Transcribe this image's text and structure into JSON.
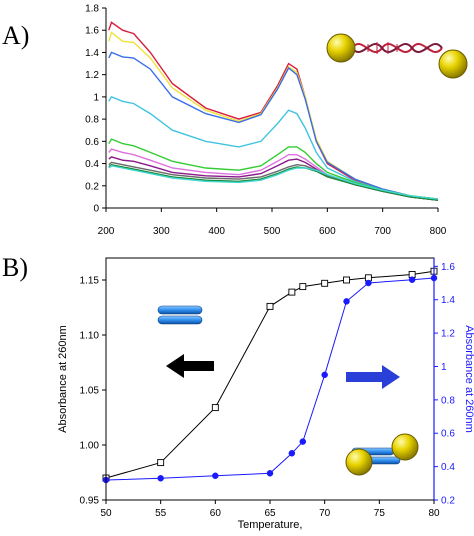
{
  "panels": {
    "a_label": "A)",
    "b_label": "B)"
  },
  "chart_data": [
    {
      "type": "line",
      "title": "",
      "xlabel": "",
      "ylabel": "",
      "xlim": [
        200,
        800
      ],
      "ylim": [
        0,
        1.8
      ],
      "x_ticks": [
        "200",
        "300",
        "400",
        "500",
        "600",
        "700",
        "800"
      ],
      "y_ticks": [
        "0",
        "0.2",
        "0.4",
        "0.6",
        "0.8",
        "1",
        "1.2",
        "1.4",
        "1.6",
        "1.8"
      ],
      "grid": false,
      "legend": "none",
      "series": [
        {
          "color": "#d81b3c",
          "points": [
            [
              205,
              1.6
            ],
            [
              210,
              1.67
            ],
            [
              230,
              1.6
            ],
            [
              250,
              1.57
            ],
            [
              280,
              1.4
            ],
            [
              320,
              1.12
            ],
            [
              380,
              0.9
            ],
            [
              440,
              0.8
            ],
            [
              480,
              0.86
            ],
            [
              510,
              1.1
            ],
            [
              530,
              1.3
            ],
            [
              545,
              1.25
            ],
            [
              560,
              1.0
            ],
            [
              580,
              0.6
            ],
            [
              600,
              0.4
            ],
            [
              650,
              0.25
            ],
            [
              700,
              0.16
            ],
            [
              750,
              0.1
            ],
            [
              800,
              0.07
            ]
          ]
        },
        {
          "color": "#f0e23a",
          "points": [
            [
              205,
              1.5
            ],
            [
              210,
              1.58
            ],
            [
              230,
              1.5
            ],
            [
              250,
              1.49
            ],
            [
              280,
              1.35
            ],
            [
              320,
              1.08
            ],
            [
              380,
              0.88
            ],
            [
              440,
              0.78
            ],
            [
              480,
              0.85
            ],
            [
              510,
              1.08
            ],
            [
              530,
              1.27
            ],
            [
              545,
              1.22
            ],
            [
              560,
              1.0
            ],
            [
              580,
              0.62
            ],
            [
              600,
              0.42
            ],
            [
              650,
              0.26
            ],
            [
              700,
              0.17
            ],
            [
              750,
              0.11
            ],
            [
              800,
              0.08
            ]
          ]
        },
        {
          "color": "#3a6ee8",
          "points": [
            [
              205,
              1.35
            ],
            [
              210,
              1.4
            ],
            [
              230,
              1.36
            ],
            [
              250,
              1.35
            ],
            [
              280,
              1.25
            ],
            [
              320,
              1.0
            ],
            [
              380,
              0.85
            ],
            [
              440,
              0.77
            ],
            [
              480,
              0.84
            ],
            [
              510,
              1.07
            ],
            [
              530,
              1.26
            ],
            [
              545,
              1.2
            ],
            [
              560,
              0.98
            ],
            [
              580,
              0.6
            ],
            [
              600,
              0.41
            ],
            [
              650,
              0.26
            ],
            [
              700,
              0.17
            ],
            [
              750,
              0.11
            ],
            [
              800,
              0.08
            ]
          ]
        },
        {
          "color": "#3fc4e0",
          "points": [
            [
              205,
              0.96
            ],
            [
              210,
              1.0
            ],
            [
              230,
              0.96
            ],
            [
              250,
              0.94
            ],
            [
              280,
              0.85
            ],
            [
              320,
              0.7
            ],
            [
              380,
              0.6
            ],
            [
              440,
              0.55
            ],
            [
              480,
              0.6
            ],
            [
              510,
              0.76
            ],
            [
              530,
              0.88
            ],
            [
              545,
              0.85
            ],
            [
              560,
              0.72
            ],
            [
              580,
              0.5
            ],
            [
              600,
              0.36
            ],
            [
              650,
              0.24
            ],
            [
              700,
              0.16
            ],
            [
              750,
              0.1
            ],
            [
              800,
              0.07
            ]
          ]
        },
        {
          "color": "#33cc33",
          "points": [
            [
              205,
              0.58
            ],
            [
              210,
              0.62
            ],
            [
              230,
              0.58
            ],
            [
              250,
              0.56
            ],
            [
              280,
              0.5
            ],
            [
              320,
              0.42
            ],
            [
              380,
              0.36
            ],
            [
              440,
              0.34
            ],
            [
              480,
              0.38
            ],
            [
              510,
              0.48
            ],
            [
              530,
              0.55
            ],
            [
              545,
              0.55
            ],
            [
              560,
              0.5
            ],
            [
              580,
              0.4
            ],
            [
              600,
              0.32
            ],
            [
              650,
              0.23
            ],
            [
              700,
              0.16
            ],
            [
              750,
              0.11
            ],
            [
              800,
              0.08
            ]
          ]
        },
        {
          "color": "#e070e0",
          "points": [
            [
              205,
              0.5
            ],
            [
              210,
              0.53
            ],
            [
              230,
              0.5
            ],
            [
              250,
              0.48
            ],
            [
              280,
              0.43
            ],
            [
              320,
              0.36
            ],
            [
              380,
              0.32
            ],
            [
              440,
              0.3
            ],
            [
              480,
              0.34
            ],
            [
              510,
              0.42
            ],
            [
              530,
              0.48
            ],
            [
              545,
              0.48
            ],
            [
              560,
              0.44
            ],
            [
              580,
              0.37
            ],
            [
              600,
              0.3
            ],
            [
              650,
              0.22
            ],
            [
              700,
              0.15
            ],
            [
              750,
              0.1
            ],
            [
              800,
              0.08
            ]
          ]
        },
        {
          "color": "#8a1a8a",
          "points": [
            [
              205,
              0.44
            ],
            [
              210,
              0.46
            ],
            [
              230,
              0.43
            ],
            [
              250,
              0.42
            ],
            [
              280,
              0.38
            ],
            [
              320,
              0.32
            ],
            [
              380,
              0.29
            ],
            [
              440,
              0.28
            ],
            [
              480,
              0.31
            ],
            [
              510,
              0.38
            ],
            [
              530,
              0.43
            ],
            [
              545,
              0.44
            ],
            [
              560,
              0.41
            ],
            [
              580,
              0.35
            ],
            [
              600,
              0.29
            ],
            [
              650,
              0.21
            ],
            [
              700,
              0.15
            ],
            [
              750,
              0.1
            ],
            [
              800,
              0.07
            ]
          ]
        },
        {
          "color": "#6a6a6a",
          "points": [
            [
              205,
              0.39
            ],
            [
              210,
              0.41
            ],
            [
              230,
              0.39
            ],
            [
              250,
              0.37
            ],
            [
              280,
              0.34
            ],
            [
              320,
              0.3
            ],
            [
              380,
              0.27
            ],
            [
              440,
              0.26
            ],
            [
              480,
              0.28
            ],
            [
              510,
              0.33
            ],
            [
              530,
              0.37
            ],
            [
              545,
              0.39
            ],
            [
              560,
              0.38
            ],
            [
              580,
              0.34
            ],
            [
              600,
              0.29
            ],
            [
              650,
              0.21
            ],
            [
              700,
              0.15
            ],
            [
              750,
              0.1
            ],
            [
              800,
              0.07
            ]
          ]
        },
        {
          "color": "#1a8a3a",
          "points": [
            [
              205,
              0.37
            ],
            [
              210,
              0.39
            ],
            [
              230,
              0.37
            ],
            [
              250,
              0.35
            ],
            [
              280,
              0.32
            ],
            [
              320,
              0.28
            ],
            [
              380,
              0.25
            ],
            [
              440,
              0.24
            ],
            [
              480,
              0.26
            ],
            [
              510,
              0.31
            ],
            [
              530,
              0.35
            ],
            [
              545,
              0.37
            ],
            [
              560,
              0.36
            ],
            [
              580,
              0.33
            ],
            [
              600,
              0.28
            ],
            [
              650,
              0.21
            ],
            [
              700,
              0.15
            ],
            [
              750,
              0.1
            ],
            [
              800,
              0.07
            ]
          ]
        },
        {
          "color": "#40d8d0",
          "points": [
            [
              205,
              0.36
            ],
            [
              210,
              0.38
            ],
            [
              230,
              0.36
            ],
            [
              250,
              0.34
            ],
            [
              280,
              0.31
            ],
            [
              320,
              0.27
            ],
            [
              380,
              0.24
            ],
            [
              440,
              0.23
            ],
            [
              480,
              0.25
            ],
            [
              510,
              0.3
            ],
            [
              530,
              0.34
            ],
            [
              545,
              0.36
            ],
            [
              560,
              0.36
            ],
            [
              580,
              0.34
            ],
            [
              600,
              0.3
            ],
            [
              650,
              0.22
            ],
            [
              700,
              0.16
            ],
            [
              750,
              0.11
            ],
            [
              800,
              0.08
            ]
          ]
        }
      ]
    },
    {
      "type": "line",
      "title": "",
      "xlabel": "Temperature,",
      "ylabel": "Absorbance at 260nm",
      "y2label": "Absorbance at 260nm",
      "xlim": [
        50,
        80
      ],
      "ylim": [
        0.95,
        1.17
      ],
      "y2lim": [
        0.2,
        1.65
      ],
      "x_ticks": [
        "50",
        "55",
        "60",
        "65",
        "70",
        "75",
        "80"
      ],
      "y_ticks": [
        "0.95",
        "1.00",
        "1.05",
        "1.10",
        "1.15"
      ],
      "y2_ticks": [
        "0.2",
        "0.4",
        "0.6",
        "0.8",
        "1",
        "1.2",
        "1.4",
        "1.6"
      ],
      "grid": false,
      "legend": "none",
      "series": [
        {
          "axis": "left",
          "color": "#000000",
          "marker": "open-square",
          "x": [
            50,
            55,
            60,
            65,
            67,
            68,
            70,
            72,
            74,
            78,
            80
          ],
          "y": [
            0.97,
            0.984,
            1.034,
            1.126,
            1.139,
            1.144,
            1.147,
            1.15,
            1.152,
            1.155,
            1.158
          ]
        },
        {
          "axis": "right",
          "color": "#1a1aff",
          "marker": "filled-circle",
          "x": [
            50,
            55,
            60,
            65,
            67,
            68,
            70,
            72,
            74,
            78,
            80
          ],
          "y": [
            0.32,
            0.33,
            0.345,
            0.36,
            0.48,
            0.55,
            0.95,
            1.39,
            1.5,
            1.52,
            1.53
          ]
        }
      ]
    }
  ],
  "colors": {
    "axis_blue": "#1a1aff",
    "nanoparticle": "#e8d400",
    "duplex_blue": "#2f8ff0"
  },
  "icons": {
    "dna_nanoparticle": "dna-linked-nanoparticle-dimer",
    "duplex": "dna-duplex-bars",
    "arrow_left": "left-arrow",
    "arrow_right": "right-arrow"
  }
}
